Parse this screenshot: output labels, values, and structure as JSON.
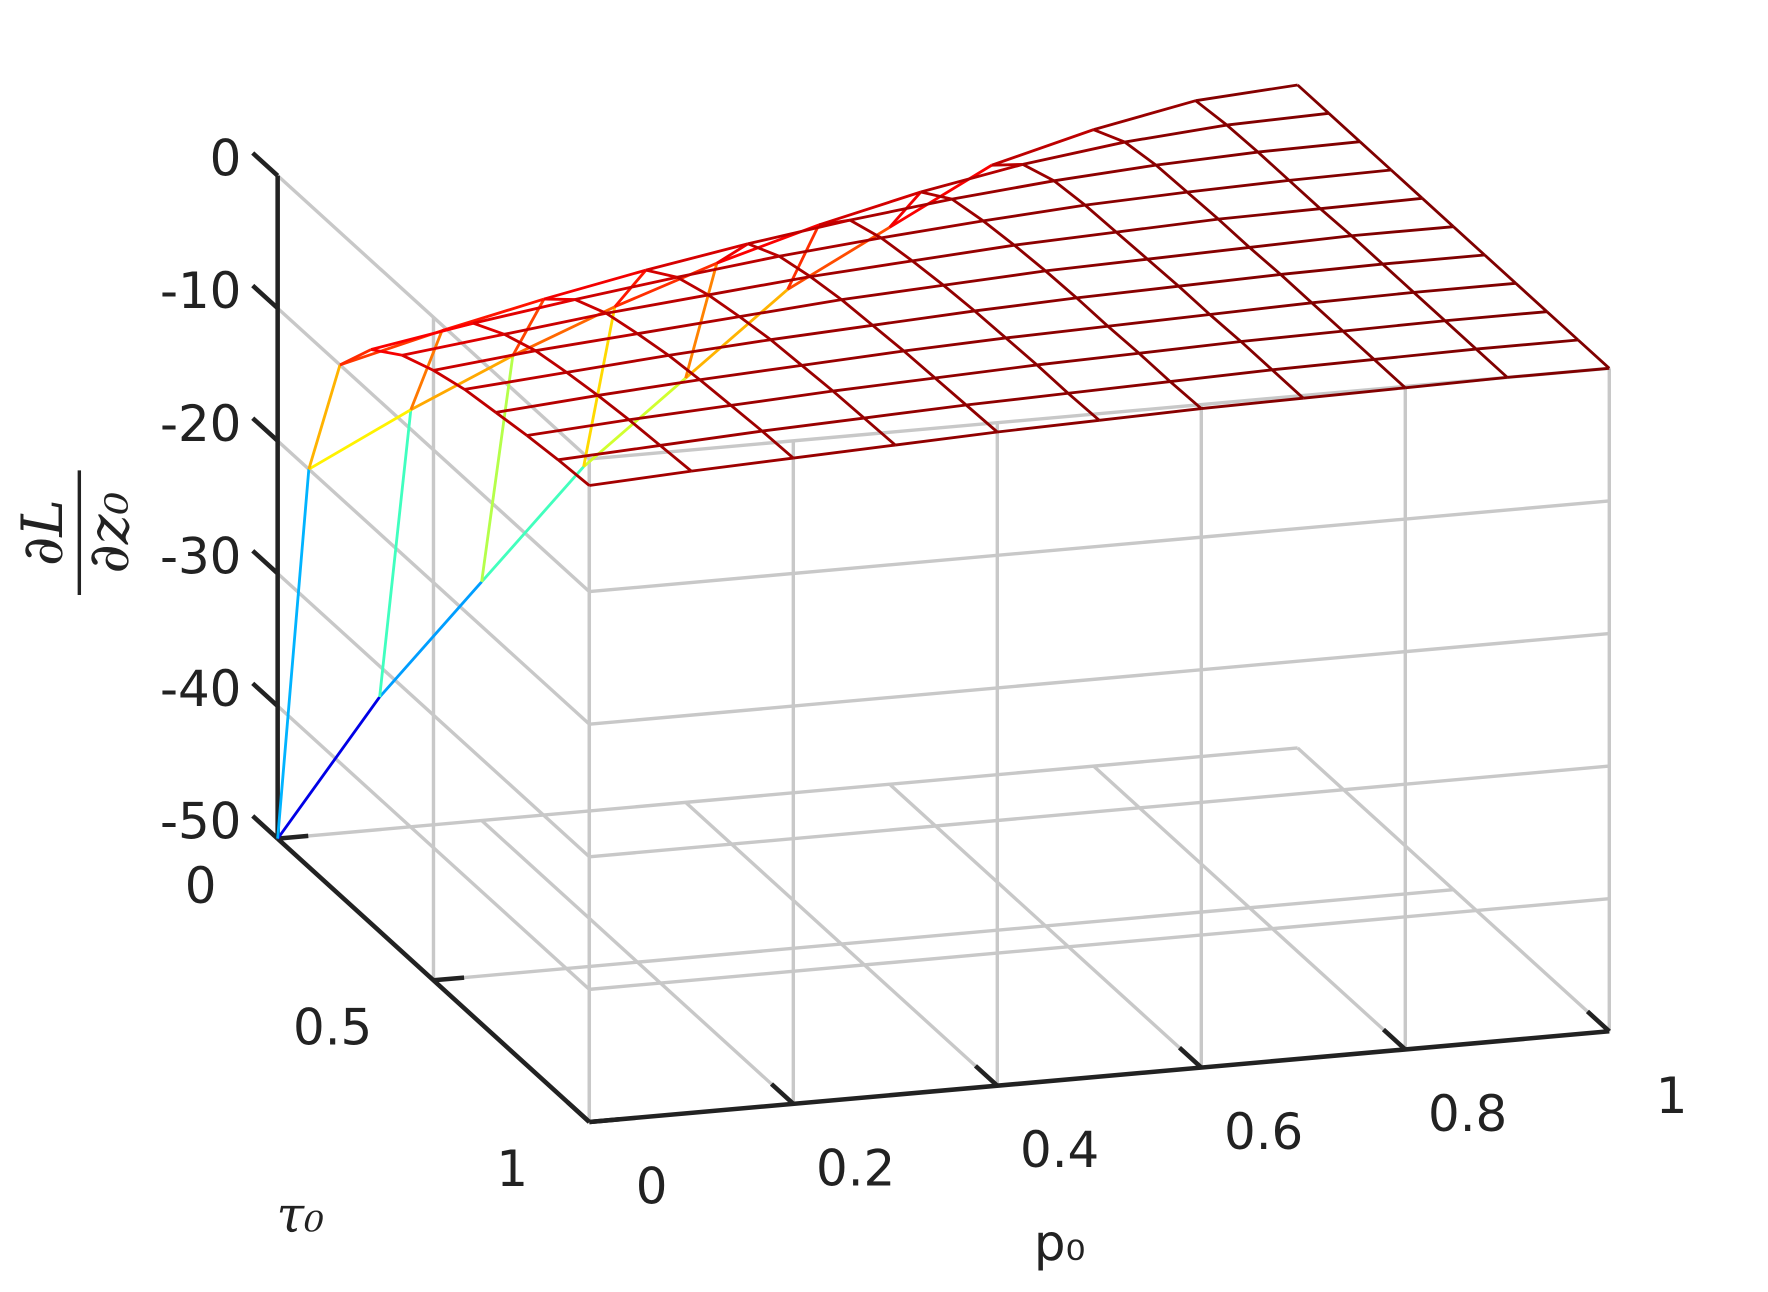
{
  "chart_data": {
    "type": "mesh",
    "colormap": "jet",
    "grid": true,
    "xlabel": "p₀",
    "ylabel": "τ₀",
    "zlabel": {
      "numerator": "∂L",
      "denominator": "∂z₀"
    },
    "x": [
      0,
      0.1,
      0.2,
      0.3,
      0.4,
      0.5,
      0.6,
      0.7,
      0.8,
      0.9,
      1
    ],
    "y": [
      0,
      0.1,
      0.2,
      0.3,
      0.4,
      0.5,
      0.6,
      0.7,
      0.8,
      0.9,
      1
    ],
    "z": [
      [
        -50,
        -40,
        -32,
        -24,
        -18,
        -12,
        -8,
        -4,
        -2,
        -0.5,
        0
      ],
      [
        -20,
        -16.2,
        -12.8,
        -9.8,
        -7.2,
        -5,
        -3.2,
        -1.8,
        -0.8,
        -0.2,
        0
      ],
      [
        -10,
        -8.1,
        -6.4,
        -4.9,
        -3.6,
        -2.5,
        -1.6,
        -0.9,
        -0.4,
        -0.1,
        0
      ],
      [
        -6.7,
        -5.4,
        -4.3,
        -3.3,
        -2.4,
        -1.7,
        -1.1,
        -0.6,
        -0.3,
        -0.1,
        0
      ],
      [
        -5,
        -4.1,
        -3.2,
        -2.5,
        -1.8,
        -1.3,
        -0.8,
        -0.5,
        -0.2,
        -0.1,
        0
      ],
      [
        -4,
        -3.2,
        -2.6,
        -2,
        -1.4,
        -1,
        -0.6,
        -0.4,
        -0.2,
        0,
        0
      ],
      [
        -3.3,
        -2.7,
        -2.1,
        -1.6,
        -1.2,
        -0.8,
        -0.5,
        -0.3,
        -0.1,
        0,
        0
      ],
      [
        -2.9,
        -2.3,
        -1.8,
        -1.4,
        -1,
        -0.7,
        -0.5,
        -0.3,
        -0.1,
        0,
        0
      ],
      [
        -2.5,
        -2,
        -1.6,
        -1.2,
        -0.9,
        -0.6,
        -0.4,
        -0.2,
        -0.1,
        0,
        0
      ],
      [
        -2.2,
        -1.8,
        -1.4,
        -1.1,
        -0.8,
        -0.6,
        -0.4,
        -0.2,
        -0.1,
        0,
        0
      ],
      [
        -2,
        -1.6,
        -1.3,
        -1,
        -0.7,
        -0.5,
        -0.3,
        -0.2,
        -0.1,
        0,
        0
      ]
    ],
    "xlim": [
      0,
      1
    ],
    "ylim": [
      0,
      1
    ],
    "zlim": [
      -50,
      0
    ],
    "xticks": [
      0,
      0.2,
      0.4,
      0.6,
      0.8,
      1
    ],
    "yticks": [
      0,
      0.5,
      1
    ],
    "zticks": [
      -50,
      -40,
      -30,
      -20,
      -10,
      0
    ]
  }
}
